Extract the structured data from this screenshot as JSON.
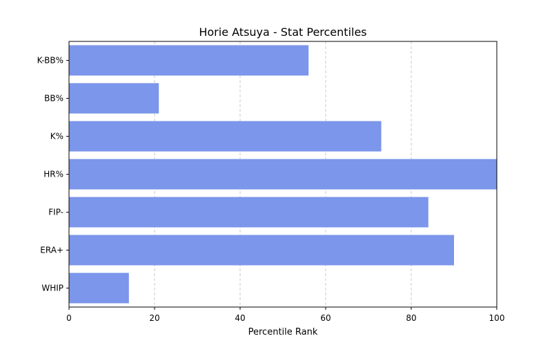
{
  "chart_data": {
    "type": "bar",
    "orientation": "horizontal",
    "title": "Horie Atsuya - Stat Percentiles",
    "xlabel": "Percentile Rank",
    "ylabel": "",
    "categories": [
      "K-BB%",
      "BB%",
      "K%",
      "HR%",
      "FIP-",
      "ERA+",
      "WHIP"
    ],
    "values": [
      56,
      21,
      73,
      100,
      84,
      90,
      14
    ],
    "xlim": [
      0,
      100
    ],
    "xticks": [
      0,
      20,
      40,
      60,
      80,
      100
    ],
    "grid": "x-dashed",
    "bar_color": "#7b96ea"
  }
}
